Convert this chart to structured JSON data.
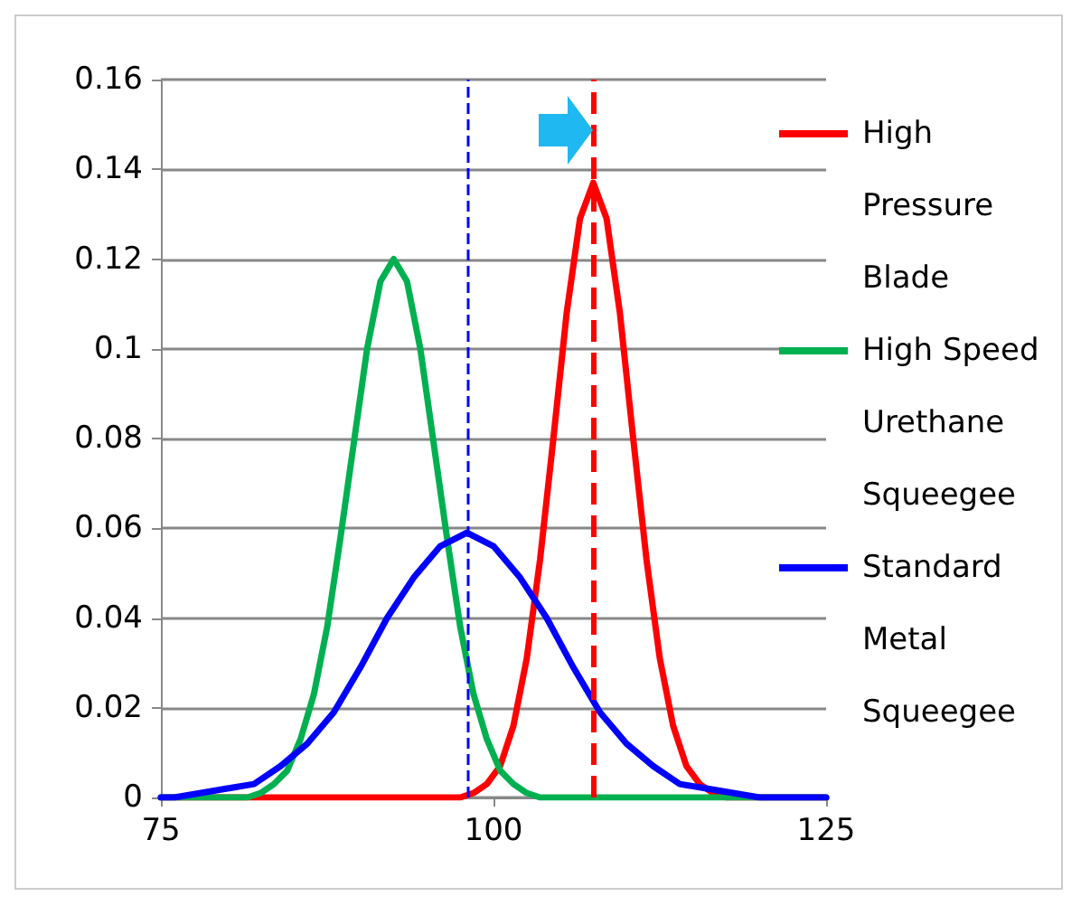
{
  "chart_data": {
    "type": "line",
    "xlim": [
      75,
      125
    ],
    "xticks": [
      75,
      100,
      125
    ],
    "ylim": [
      0,
      0.16
    ],
    "yticks": [
      0,
      0.02,
      0.04,
      0.06,
      0.08,
      0.1,
      0.12,
      0.14,
      0.16
    ],
    "grid": "y",
    "legend": "right",
    "marker": "none",
    "line_style": "solid",
    "series": [
      {
        "name": "High Pressure Blade",
        "color": "#ff0000",
        "x": [
          75,
          97.5,
          98.5,
          99.5,
          100.5,
          101.5,
          102.5,
          103.5,
          104.5,
          105.5,
          106.5,
          107.5,
          108.5,
          109.5,
          110.5,
          111.5,
          112.5,
          113.5,
          114.5,
          115.5,
          116.5,
          117.5,
          125
        ],
        "values": [
          0,
          0,
          0.001,
          0.003,
          0.007,
          0.016,
          0.031,
          0.053,
          0.08,
          0.108,
          0.129,
          0.137,
          0.129,
          0.108,
          0.08,
          0.053,
          0.031,
          0.016,
          0.007,
          0.003,
          0.001,
          0,
          0
        ]
      },
      {
        "name": "High Speed Urethane Squeegee",
        "color": "#00b050",
        "x": [
          75,
          81.5,
          82.5,
          83.5,
          84.5,
          85.5,
          86.5,
          87.5,
          88.5,
          89.5,
          90.5,
          91.5,
          92.5,
          93.5,
          94.5,
          95.5,
          96.5,
          97.5,
          98.5,
          99.5,
          100.5,
          101.5,
          102.5,
          103.5,
          125
        ],
        "values": [
          0,
          0,
          0.001,
          0.003,
          0.006,
          0.013,
          0.023,
          0.038,
          0.058,
          0.079,
          0.1,
          0.115,
          0.12,
          0.115,
          0.1,
          0.079,
          0.058,
          0.038,
          0.023,
          0.013,
          0.006,
          0.003,
          0.001,
          0,
          0
        ]
      },
      {
        "name": "Standard Metal Squeegee",
        "color": "#0000ff",
        "x": [
          75,
          76,
          78,
          80,
          82,
          84,
          86,
          88,
          90,
          92,
          94,
          96,
          98,
          100,
          102,
          104,
          106,
          108,
          110,
          112,
          114,
          116,
          118,
          120,
          125
        ],
        "values": [
          0,
          0,
          0.001,
          0.002,
          0.003,
          0.007,
          0.012,
          0.019,
          0.029,
          0.04,
          0.049,
          0.056,
          0.059,
          0.056,
          0.049,
          0.04,
          0.029,
          0.019,
          0.012,
          0.007,
          0.003,
          0.002,
          0.001,
          0,
          0
        ]
      }
    ],
    "ref_lines": [
      {
        "axis": "x",
        "value": 98,
        "color": "#0000ff",
        "line_style": "dashed"
      },
      {
        "axis": "x",
        "value": 107.5,
        "color": "#ff0000",
        "line_style": "dashed"
      }
    ]
  }
}
